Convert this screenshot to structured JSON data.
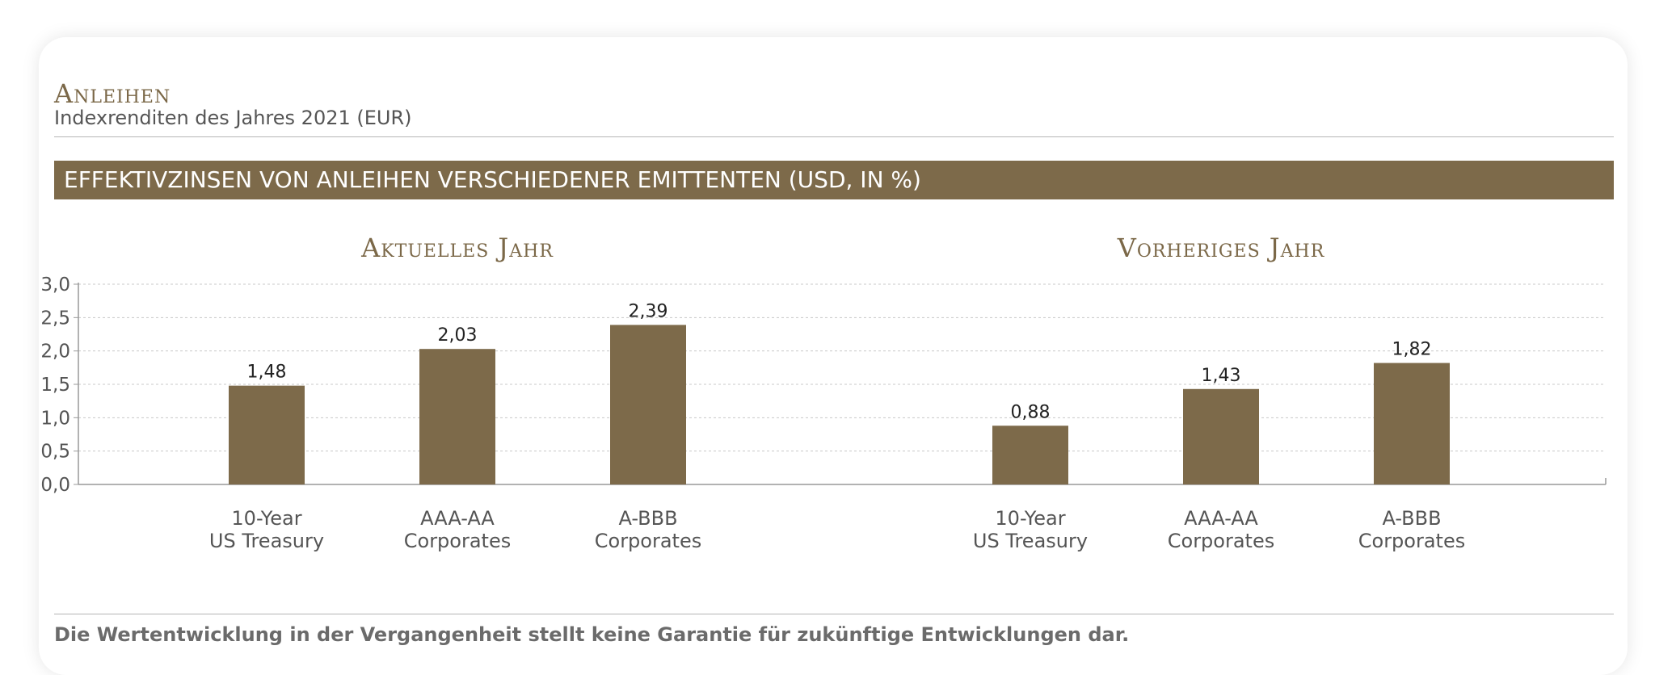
{
  "header": {
    "title": "Anleihen",
    "subtitle": "Indexrenditen des Jahres 2021 (EUR)"
  },
  "banner": {
    "text": "EFFEKTIVZINSEN VON ANLEIHEN VERSCHIEDENER EMITTENTEN (USD, IN %)"
  },
  "footer": {
    "disclaimer": "Die Wertentwicklung in der Vergangenheit stellt keine Garantie für zukünftige Entwicklungen dar."
  },
  "colors": {
    "accent": "#7d6a4a",
    "title": "#7b6848",
    "text": "#555555",
    "grid": "#c8c8c8"
  },
  "chart_data": {
    "type": "bar",
    "ylim": [
      0,
      3.0
    ],
    "yticks": [
      "0,0",
      "0,5",
      "1,0",
      "1,5",
      "2,0",
      "2,5",
      "3,0"
    ],
    "grid": true,
    "groups": [
      {
        "title": "Aktuelles Jahr",
        "categories": [
          [
            "10-Year",
            "US Treasury"
          ],
          [
            "AAA-AA",
            "Corporates"
          ],
          [
            "A-BBB",
            "Corporates"
          ]
        ],
        "values": [
          1.48,
          2.03,
          2.39
        ],
        "labels": [
          "1,48",
          "2,03",
          "2,39"
        ]
      },
      {
        "title": "Vorheriges Jahr",
        "categories": [
          [
            "10-Year",
            "US Treasury"
          ],
          [
            "AAA-AA",
            "Corporates"
          ],
          [
            "A-BBB",
            "Corporates"
          ]
        ],
        "values": [
          0.88,
          1.43,
          1.82
        ],
        "labels": [
          "0,88",
          "1,43",
          "1,82"
        ]
      }
    ]
  }
}
